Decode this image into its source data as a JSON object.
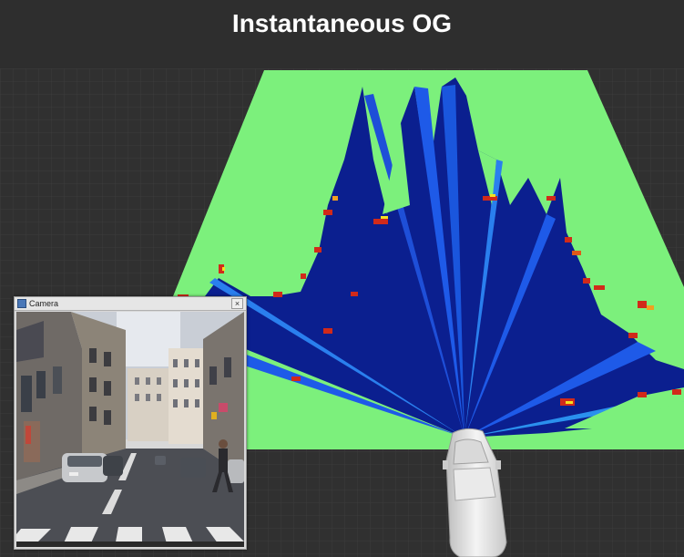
{
  "title": "Instantaneous OG",
  "camera_window": {
    "title": "Camera"
  },
  "colors": {
    "free_space": "#7cf07c",
    "unknown_deep": "#0a1f8c",
    "occupied": "#d12a1a",
    "background": "#303030",
    "title_bar": "#2e2e2e"
  },
  "icons": {
    "vehicle": "car-model-icon",
    "camera_app": "camera-app-icon",
    "close": "close-icon"
  }
}
